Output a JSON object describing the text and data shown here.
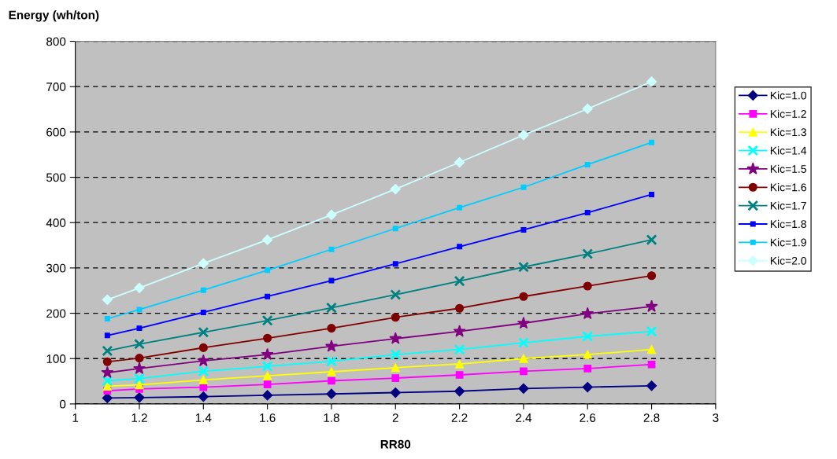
{
  "chart_data": {
    "type": "line",
    "ylabel": "Energy (wh/ton)",
    "xlabel": "RR80",
    "x": [
      1.1,
      1.2,
      1.4,
      1.6,
      1.8,
      2.0,
      2.2,
      2.4,
      2.6,
      2.8
    ],
    "xlim": [
      1,
      3
    ],
    "xticks": [
      1,
      {
        "value": 1.2,
        "label": "1.2"
      },
      {
        "value": 1.4,
        "label": "1.4"
      },
      {
        "value": 1.6,
        "label": "1.6"
      },
      {
        "value": 1.8,
        "label": "1.8"
      },
      2,
      {
        "value": 2.2,
        "label": "2.2"
      },
      {
        "value": 2.4,
        "label": "2.4"
      },
      {
        "value": 2.6,
        "label": "2.6"
      },
      {
        "value": 2.8,
        "label": "2.8"
      },
      3
    ],
    "ylim": [
      0,
      800
    ],
    "yticks": [
      0,
      100,
      200,
      300,
      400,
      500,
      600,
      700,
      800
    ],
    "grid": "y",
    "legend": "right",
    "series": [
      {
        "name": "Kic=1.0",
        "color": "#000080",
        "marker": "diamond",
        "values": [
          13,
          14,
          16,
          19,
          22,
          25,
          28,
          34,
          37,
          40
        ]
      },
      {
        "name": "Kic=1.2",
        "color": "#ff00ff",
        "marker": "square",
        "values": [
          29,
          33,
          37,
          43,
          51,
          57,
          64,
          72,
          78,
          87
        ]
      },
      {
        "name": "Kic=1.3",
        "color": "#ffff00",
        "marker": "triangle",
        "values": [
          39,
          42,
          53,
          62,
          71,
          80,
          88,
          100,
          109,
          120
        ]
      },
      {
        "name": "Kic=1.4",
        "color": "#00ffff",
        "marker": "cross",
        "values": [
          51,
          56,
          72,
          83,
          94,
          109,
          120,
          135,
          149,
          160
        ]
      },
      {
        "name": "Kic=1.5",
        "color": "#800080",
        "marker": "star",
        "values": [
          69,
          78,
          95,
          109,
          127,
          144,
          160,
          178,
          199,
          215
        ]
      },
      {
        "name": "Kic=1.6",
        "color": "#800000",
        "marker": "circle",
        "values": [
          93,
          101,
          124,
          145,
          167,
          191,
          211,
          237,
          260,
          283
        ]
      },
      {
        "name": "Kic=1.7",
        "color": "#008080",
        "marker": "cross",
        "values": [
          117,
          132,
          158,
          184,
          212,
          241,
          271,
          302,
          331,
          362
        ]
      },
      {
        "name": "Kic=1.8",
        "color": "#0000ff",
        "marker": "square",
        "values": [
          151,
          167,
          202,
          237,
          272,
          309,
          347,
          384,
          422,
          462
        ]
      },
      {
        "name": "Kic=1.9",
        "color": "#00ccff",
        "marker": "square",
        "values": [
          188,
          208,
          251,
          295,
          341,
          387,
          433,
          478,
          528,
          577
        ]
      },
      {
        "name": "Kic=2.0",
        "color": "#ccffff",
        "marker": "diamond",
        "values": [
          230,
          256,
          310,
          362,
          417,
          474,
          533,
          593,
          651,
          711
        ]
      }
    ]
  }
}
